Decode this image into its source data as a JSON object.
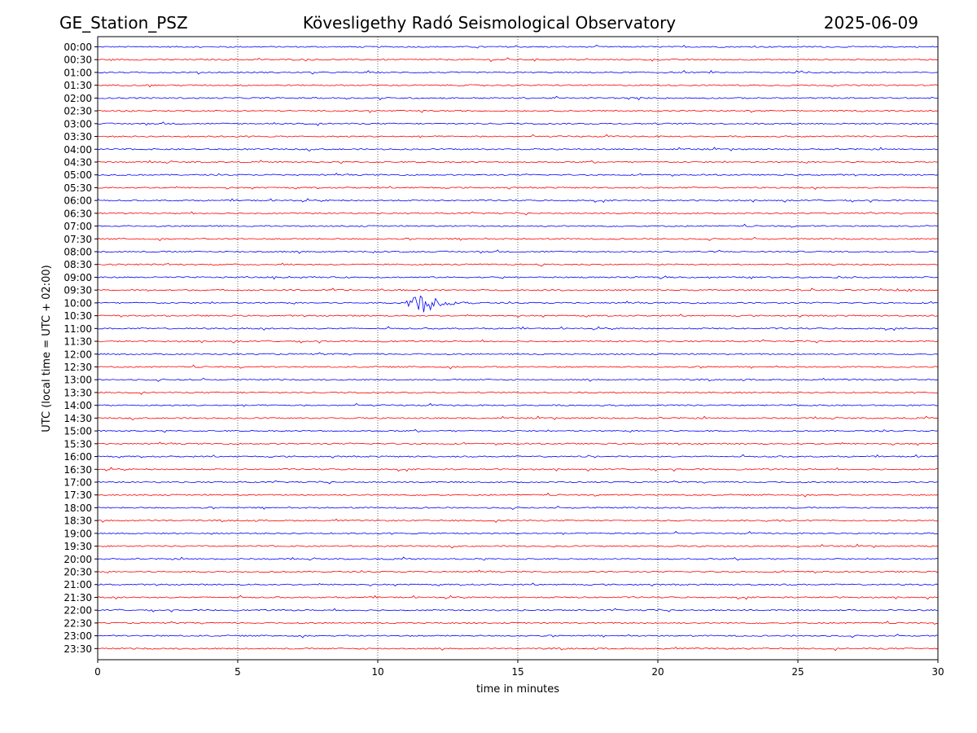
{
  "header": {
    "station": "GE_Station_PSZ",
    "observatory": "Kövesligethy Radó Seismological Observatory",
    "date": "2025-06-09"
  },
  "chart_data": {
    "type": "line",
    "title": "Kövesligethy Radó Seismological Observatory",
    "xlabel": "time in minutes",
    "ylabel": "UTC (local time = UTC + 02:00)",
    "xlim": [
      0,
      30
    ],
    "x_ticks": [
      "0",
      "5",
      "10",
      "15",
      "20",
      "25",
      "30"
    ],
    "x_tick_values": [
      0,
      5,
      10,
      15,
      20,
      25,
      30
    ],
    "vertical_grid": "dotted at x ticks",
    "row_labels": [
      "00:00",
      "00:30",
      "01:00",
      "01:30",
      "02:00",
      "02:30",
      "03:00",
      "03:30",
      "04:00",
      "04:30",
      "05:00",
      "05:30",
      "06:00",
      "06:30",
      "07:00",
      "07:30",
      "08:00",
      "08:30",
      "09:00",
      "09:30",
      "10:00",
      "10:30",
      "11:00",
      "11:30",
      "12:00",
      "12:30",
      "13:00",
      "13:30",
      "14:00",
      "14:30",
      "15:00",
      "15:30",
      "16:00",
      "16:30",
      "17:00",
      "17:30",
      "18:00",
      "18:30",
      "19:00",
      "19:30",
      "20:00",
      "20:30",
      "21:00",
      "21:30",
      "22:00",
      "22:30",
      "23:00",
      "23:30"
    ],
    "colors": {
      "even_rows": "#0000ff",
      "odd_rows": "#ff0000"
    },
    "noise_amplitude": 0.15,
    "events": [
      {
        "row": "03:00",
        "start_min": 6.0,
        "end_min": 7.2,
        "peak_min": 6.2,
        "amplitude": 0.45
      },
      {
        "row": "08:00",
        "start_min": 9.4,
        "end_min": 11.0,
        "peak_min": 9.8,
        "amplitude": 0.3
      },
      {
        "row": "09:30",
        "start_min": 28.2,
        "end_min": 29.8,
        "peak_min": 28.9,
        "amplitude": 0.35
      },
      {
        "row": "10:00",
        "start_min": 10.8,
        "end_min": 13.5,
        "peak_min": 11.5,
        "amplitude": 2.8
      },
      {
        "row": "16:00",
        "start_min": 17.4,
        "end_min": 18.8,
        "peak_min": 17.5,
        "amplitude": 0.3
      },
      {
        "row": "18:30",
        "start_min": 23.5,
        "end_min": 26.0,
        "peak_min": 24.5,
        "amplitude": 0.25
      }
    ]
  }
}
